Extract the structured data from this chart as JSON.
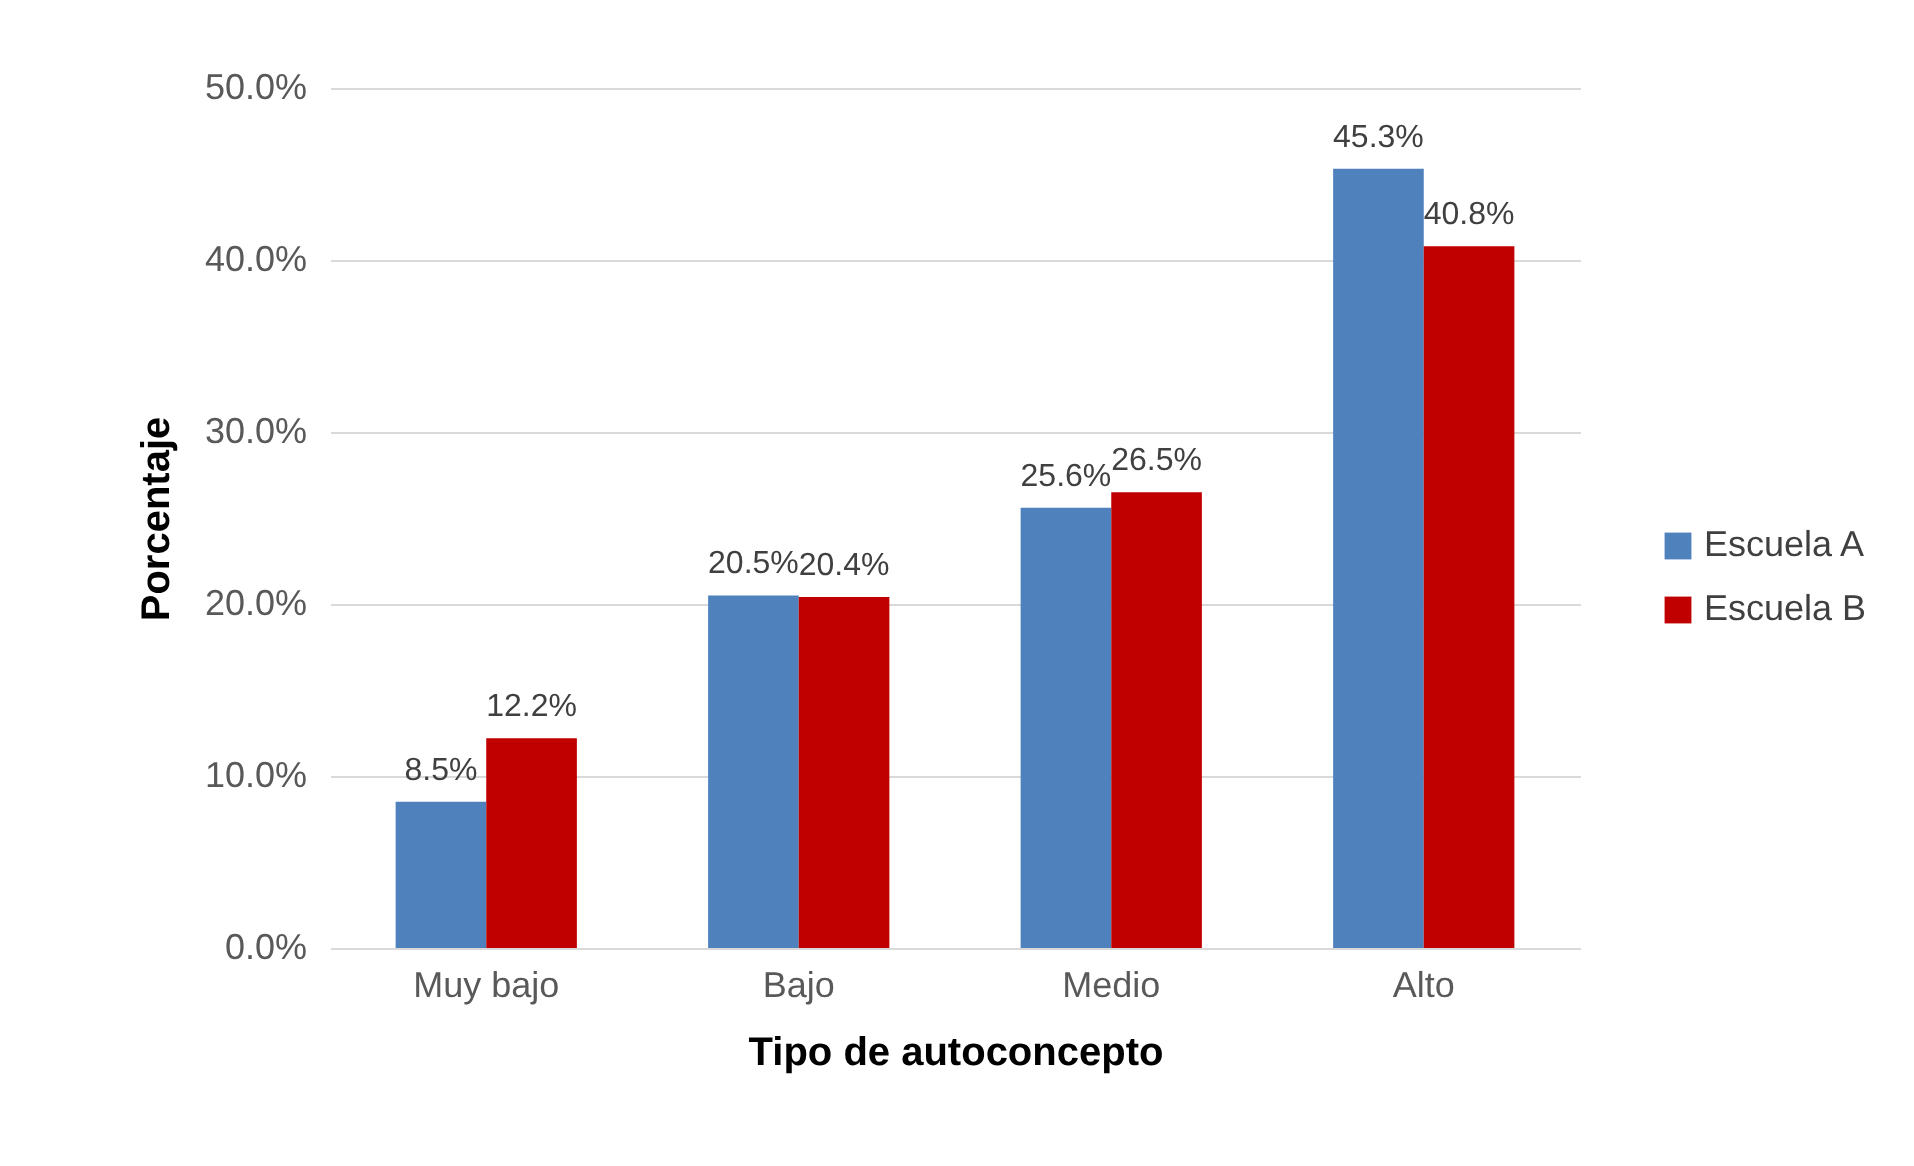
{
  "chart_data": {
    "type": "bar",
    "xlabel": "Tipo de autoconcepto",
    "ylabel": "Porcentaje",
    "categories": [
      "Muy bajo",
      "Bajo",
      "Medio",
      "Alto"
    ],
    "series": [
      {
        "name": "Escuela A",
        "color": "#4f81bd",
        "values": [
          8.5,
          20.5,
          25.6,
          45.3
        ],
        "value_labels": [
          "8.5%",
          "20.5%",
          "25.6%",
          "45.3%"
        ]
      },
      {
        "name": "Escuela B",
        "color": "#c00000",
        "values": [
          12.2,
          20.4,
          26.5,
          40.8
        ],
        "value_labels": [
          "12.2%",
          "20.4%",
          "26.5%",
          "40.8%"
        ]
      }
    ],
    "ylim": [
      0,
      50
    ],
    "yticks": [
      {
        "value": 0,
        "label": "0.0%"
      },
      {
        "value": 10,
        "label": "10.0%"
      },
      {
        "value": 20,
        "label": "20.0%"
      },
      {
        "value": 30,
        "label": "30.0%"
      },
      {
        "value": 40,
        "label": "40.0%"
      },
      {
        "value": 50,
        "label": "50.0%"
      }
    ],
    "grid": "y",
    "legend": "right"
  }
}
